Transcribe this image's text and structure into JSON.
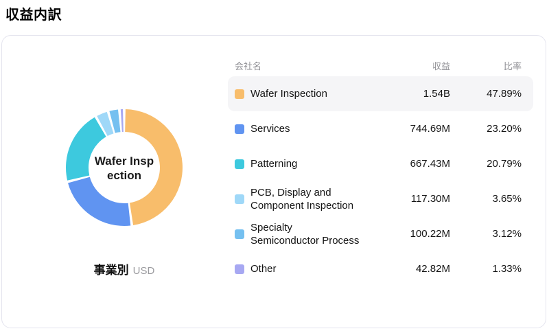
{
  "page_title": "収益内訳",
  "card": {
    "donut_center_lines": [
      "Wafer Insp",
      "ection"
    ],
    "biz_label": "事業別",
    "biz_unit": "USD",
    "table": {
      "headers": {
        "name": "会社名",
        "revenue": "収益",
        "ratio": "比率"
      },
      "rows": [
        {
          "name": "Wafer Inspection",
          "revenue": "1.54B",
          "ratio": "47.89%",
          "color": "#F8BD6B",
          "highlighted": true
        },
        {
          "name": "Services",
          "revenue": "744.69M",
          "ratio": "23.20%",
          "color": "#6094F1",
          "highlighted": false
        },
        {
          "name": "Patterning",
          "revenue": "667.43M",
          "ratio": "20.79%",
          "color": "#3DC9DE",
          "highlighted": false
        },
        {
          "name": "PCB, Display and\nComponent Inspection",
          "revenue": "117.30M",
          "ratio": "3.65%",
          "color": "#9FD8F8",
          "highlighted": false
        },
        {
          "name": "Specialty\nSemiconductor Process",
          "revenue": "100.22M",
          "ratio": "3.12%",
          "color": "#75C0F0",
          "highlighted": false
        },
        {
          "name": "Other",
          "revenue": "42.82M",
          "ratio": "1.33%",
          "color": "#A7A8F2",
          "highlighted": false
        }
      ]
    }
  },
  "chart_data": {
    "type": "pie",
    "subtype": "donut",
    "title": "収益内訳",
    "center_label": "Wafer Inspection",
    "categories": [
      "Wafer Inspection",
      "Services",
      "Patterning",
      "PCB, Display and Component Inspection",
      "Specialty Semiconductor Process",
      "Other"
    ],
    "values_percent": [
      47.89,
      23.2,
      20.79,
      3.65,
      3.12,
      1.33
    ],
    "values_revenue": [
      "1.54B",
      "744.69M",
      "667.43M",
      "117.30M",
      "100.22M",
      "42.82M"
    ],
    "unit": "USD",
    "colors": [
      "#F8BD6B",
      "#6094F1",
      "#3DC9DE",
      "#9FD8F8",
      "#75C0F0",
      "#A7A8F2"
    ],
    "legend_position": "right",
    "start_angle_deg": 0,
    "direction": "clockwise"
  }
}
